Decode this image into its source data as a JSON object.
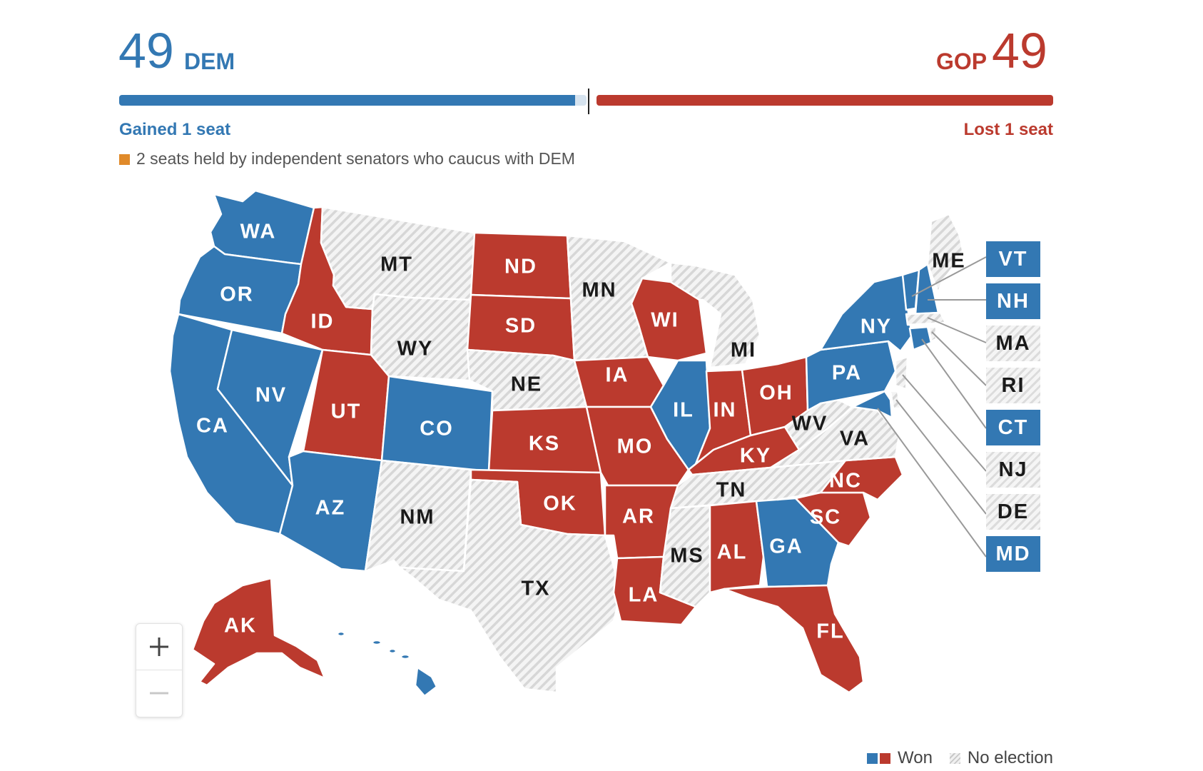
{
  "tally": {
    "dem": {
      "count": "49",
      "party": "DEM",
      "change": "Gained 1 seat"
    },
    "gop": {
      "count": "49",
      "party": "GOP",
      "change": "Lost 1 seat"
    },
    "independent_note": "2 seats held by independent senators who caucus with DEM"
  },
  "colors": {
    "dem": "#3378b3",
    "gop": "#bb3a2e",
    "independent": "#e08a2a",
    "no_election": "#dcdcdc"
  },
  "states": [
    {
      "abbr": "WA",
      "result": "dem"
    },
    {
      "abbr": "OR",
      "result": "dem"
    },
    {
      "abbr": "CA",
      "result": "dem"
    },
    {
      "abbr": "NV",
      "result": "dem"
    },
    {
      "abbr": "AZ",
      "result": "dem"
    },
    {
      "abbr": "CO",
      "result": "dem"
    },
    {
      "abbr": "IL",
      "result": "dem"
    },
    {
      "abbr": "PA",
      "result": "dem"
    },
    {
      "abbr": "NY",
      "result": "dem"
    },
    {
      "abbr": "GA",
      "result": "dem"
    },
    {
      "abbr": "HI",
      "result": "dem"
    },
    {
      "abbr": "ID",
      "result": "gop"
    },
    {
      "abbr": "UT",
      "result": "gop"
    },
    {
      "abbr": "ND",
      "result": "gop"
    },
    {
      "abbr": "SD",
      "result": "gop"
    },
    {
      "abbr": "KS",
      "result": "gop"
    },
    {
      "abbr": "OK",
      "result": "gop"
    },
    {
      "abbr": "IA",
      "result": "gop"
    },
    {
      "abbr": "MO",
      "result": "gop"
    },
    {
      "abbr": "AR",
      "result": "gop"
    },
    {
      "abbr": "LA",
      "result": "gop"
    },
    {
      "abbr": "WI",
      "result": "gop"
    },
    {
      "abbr": "IN",
      "result": "gop"
    },
    {
      "abbr": "OH",
      "result": "gop"
    },
    {
      "abbr": "KY",
      "result": "gop"
    },
    {
      "abbr": "NC",
      "result": "gop"
    },
    {
      "abbr": "SC",
      "result": "gop"
    },
    {
      "abbr": "AL",
      "result": "gop"
    },
    {
      "abbr": "FL",
      "result": "gop"
    },
    {
      "abbr": "AK",
      "result": "gop"
    },
    {
      "abbr": "MT",
      "result": "none"
    },
    {
      "abbr": "WY",
      "result": "none"
    },
    {
      "abbr": "NE",
      "result": "none"
    },
    {
      "abbr": "NM",
      "result": "none"
    },
    {
      "abbr": "TX",
      "result": "none"
    },
    {
      "abbr": "MN",
      "result": "none"
    },
    {
      "abbr": "MI",
      "result": "none"
    },
    {
      "abbr": "MS",
      "result": "none"
    },
    {
      "abbr": "TN",
      "result": "none"
    },
    {
      "abbr": "WV",
      "result": "none"
    },
    {
      "abbr": "VA",
      "result": "none"
    },
    {
      "abbr": "ME",
      "result": "none"
    }
  ],
  "northeast": [
    {
      "abbr": "VT",
      "result": "dem"
    },
    {
      "abbr": "NH",
      "result": "dem"
    },
    {
      "abbr": "MA",
      "result": "none"
    },
    {
      "abbr": "RI",
      "result": "none"
    },
    {
      "abbr": "CT",
      "result": "dem"
    },
    {
      "abbr": "NJ",
      "result": "none"
    },
    {
      "abbr": "DE",
      "result": "none"
    },
    {
      "abbr": "MD",
      "result": "dem"
    }
  ],
  "zoom": {
    "in_icon": "plus-icon",
    "out_icon": "minus-icon"
  },
  "legend": {
    "won": "Won",
    "no_election": "No election"
  }
}
